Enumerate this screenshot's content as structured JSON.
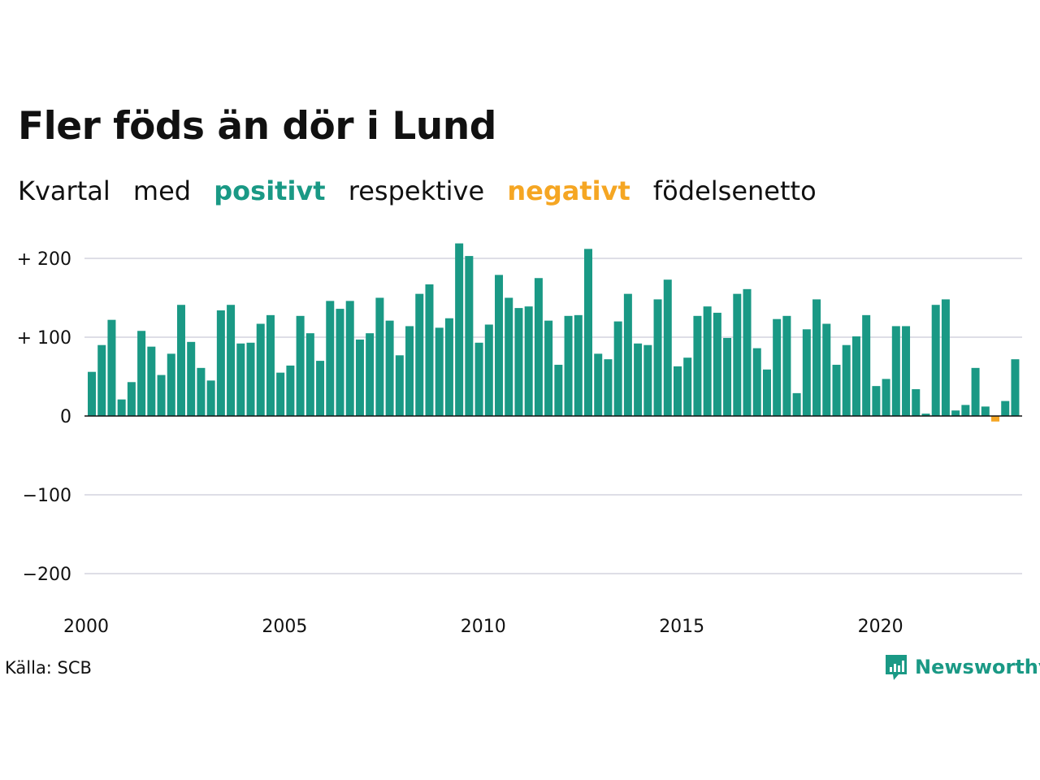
{
  "title": "Fler föds än dör i Lund",
  "subtitle": {
    "w1": "Kvartal",
    "w2": "med",
    "positive": "positivt",
    "w3": "respektive",
    "negative": "negativt",
    "w4": "födelsenetto"
  },
  "source": "Källa: SCB",
  "brand": {
    "name": "Newsworthy",
    "icon": "newsworthy-chat-bars-icon"
  },
  "colors": {
    "positive": "#1a9985",
    "negative": "#f5a623",
    "grid": "#dedee6",
    "text": "#111111"
  },
  "chart_data": {
    "type": "bar",
    "title": "Fler föds än dör i Lund",
    "xlabel": "",
    "ylabel": "",
    "ylim": [
      -200,
      200
    ],
    "yticks": [
      200,
      100,
      0,
      -100,
      -200
    ],
    "ytick_labels": [
      "+ 200",
      "+ 100",
      "0",
      "−100",
      "−200"
    ],
    "xtick_labels": [
      "2000",
      "2005",
      "2010",
      "2015",
      "2020"
    ],
    "grid": true,
    "x_start": "2000 Q1",
    "frequency": "quarterly",
    "values": [
      56,
      90,
      122,
      21,
      43,
      108,
      88,
      52,
      79,
      141,
      94,
      61,
      45,
      134,
      141,
      92,
      93,
      117,
      128,
      55,
      64,
      127,
      105,
      70,
      146,
      136,
      146,
      97,
      105,
      150,
      121,
      77,
      114,
      155,
      167,
      112,
      124,
      219,
      203,
      93,
      116,
      179,
      150,
      137,
      139,
      175,
      121,
      65,
      127,
      128,
      212,
      79,
      72,
      120,
      155,
      92,
      90,
      148,
      173,
      63,
      74,
      127,
      139,
      131,
      99,
      155,
      161,
      86,
      59,
      123,
      127,
      29,
      110,
      148,
      117,
      65,
      90,
      101,
      128,
      38,
      47,
      114,
      114,
      34,
      3,
      141,
      148,
      7,
      14,
      61,
      12,
      -7,
      19,
      72
    ]
  }
}
